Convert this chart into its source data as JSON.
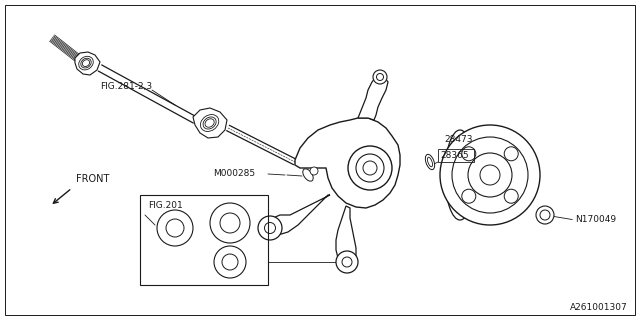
{
  "background_color": "#ffffff",
  "line_color": "#1a1a1a",
  "text_color": "#1a1a1a",
  "font_size": 6.5,
  "labels": {
    "fig281": "FIG.281-2,3",
    "m000285": "M000285",
    "fig201": "FIG.201",
    "part28473": "28473",
    "part28365": "28365",
    "n170049": "N170049",
    "front": "FRONT",
    "ref_code": "A261001307"
  }
}
